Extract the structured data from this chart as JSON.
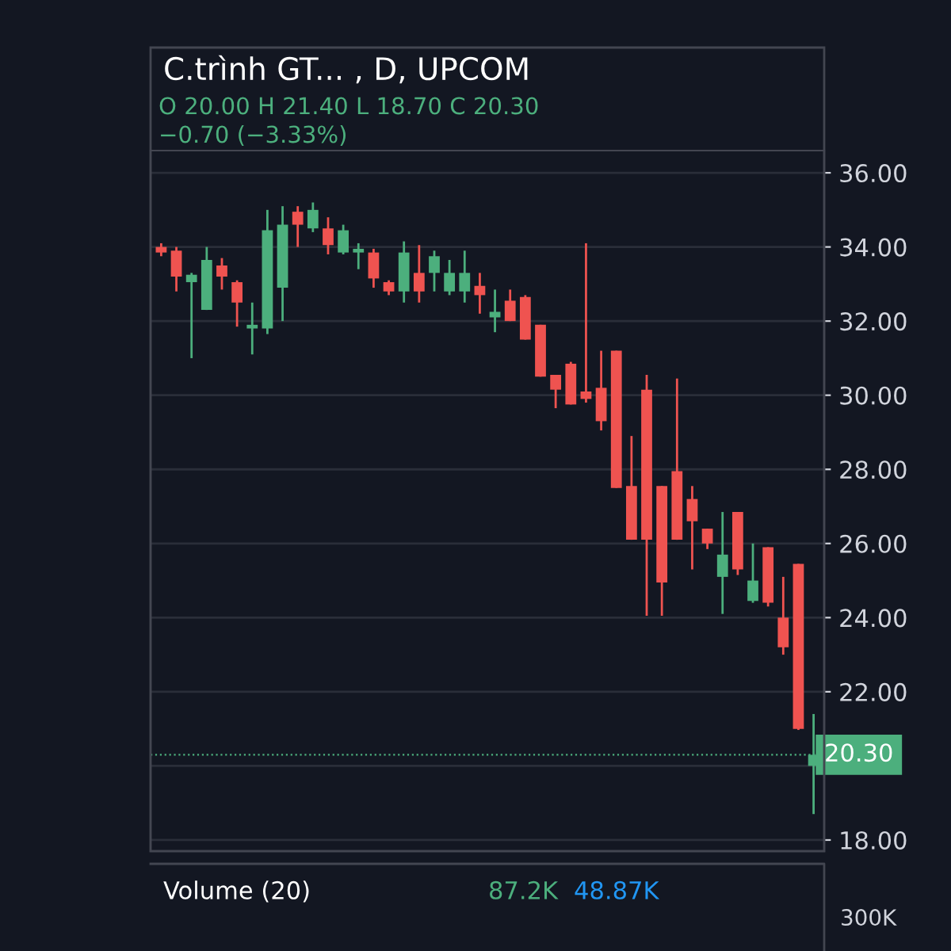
{
  "chart_data": {
    "type": "candlestick",
    "title": "C.trình GT... , D, UPCOM",
    "subtitle": "O 20.00 H 21.40 L 18.70 C 20.30",
    "annotations": [
      "−0.70 (−3.33%)",
      "Volume (20)",
      "87.2K",
      "48.87K",
      "300K"
    ],
    "categories": [
      null,
      null,
      null,
      null,
      null,
      null,
      null,
      null,
      null,
      null,
      null,
      null,
      null,
      null,
      null,
      null,
      null,
      null,
      null,
      null,
      null,
      null,
      null,
      null,
      null,
      null,
      null,
      null,
      null,
      null,
      null,
      null,
      null,
      null,
      null,
      null,
      null,
      null,
      null,
      null,
      null,
      null,
      null,
      null
    ],
    "ohlc": [
      [
        34.0,
        34.1,
        33.75,
        33.85
      ],
      [
        33.9,
        34.0,
        32.8,
        33.2
      ],
      [
        33.05,
        33.3,
        31.0,
        33.25
      ],
      [
        32.3,
        34.0,
        32.3,
        33.65
      ],
      [
        33.5,
        33.7,
        32.85,
        33.2
      ],
      [
        33.05,
        33.1,
        31.85,
        32.5
      ],
      [
        31.8,
        32.5,
        31.1,
        31.9
      ],
      [
        31.8,
        35.0,
        31.65,
        34.45
      ],
      [
        32.9,
        35.1,
        32.0,
        34.6
      ],
      [
        34.95,
        35.1,
        34.0,
        34.6
      ],
      [
        34.5,
        35.2,
        34.4,
        35.0
      ],
      [
        34.5,
        34.8,
        33.8,
        34.05
      ],
      [
        33.85,
        34.6,
        33.8,
        34.45
      ],
      [
        33.85,
        34.1,
        33.4,
        33.95
      ],
      [
        33.85,
        33.95,
        32.9,
        33.15
      ],
      [
        33.05,
        33.1,
        32.7,
        32.8
      ],
      [
        32.8,
        34.15,
        32.5,
        33.85
      ],
      [
        33.3,
        34.05,
        32.5,
        32.8
      ],
      [
        33.3,
        33.9,
        32.8,
        33.75
      ],
      [
        32.8,
        33.65,
        32.7,
        33.3
      ],
      [
        32.8,
        33.9,
        32.5,
        33.3
      ],
      [
        32.95,
        33.3,
        32.2,
        32.7
      ],
      [
        32.1,
        32.85,
        31.7,
        32.25
      ],
      [
        32.55,
        32.85,
        32.0,
        32.0
      ],
      [
        32.65,
        32.7,
        31.5,
        31.5
      ],
      [
        31.9,
        31.9,
        30.5,
        30.5
      ],
      [
        30.55,
        30.55,
        29.65,
        30.15
      ],
      [
        30.85,
        30.9,
        29.75,
        29.75
      ],
      [
        30.1,
        34.1,
        29.8,
        29.9
      ],
      [
        30.2,
        31.2,
        29.05,
        29.3
      ],
      [
        31.2,
        31.2,
        27.5,
        27.5
      ],
      [
        27.55,
        28.9,
        26.1,
        26.1
      ],
      [
        30.15,
        30.55,
        24.05,
        26.1
      ],
      [
        27.55,
        27.55,
        24.05,
        24.95
      ],
      [
        27.95,
        30.45,
        26.1,
        26.1
      ],
      [
        27.2,
        27.55,
        25.3,
        26.6
      ],
      [
        26.4,
        26.4,
        25.85,
        26.0
      ],
      [
        25.1,
        26.85,
        24.1,
        25.7
      ],
      [
        26.85,
        26.85,
        25.15,
        25.3
      ],
      [
        24.45,
        26.0,
        24.4,
        25.0
      ],
      [
        25.9,
        25.9,
        24.3,
        24.4
      ],
      [
        24.0,
        25.1,
        23.0,
        23.2
      ],
      [
        25.45,
        25.45,
        20.97,
        21.0
      ],
      [
        20.0,
        21.4,
        18.7,
        20.3
      ]
    ],
    "colors": [
      "#ef5350",
      "#ef5350",
      "#4caf7d",
      "#4caf7d",
      "#ef5350",
      "#ef5350",
      "#4caf7d",
      "#4caf7d",
      "#4caf7d",
      "#ef5350",
      "#4caf7d",
      "#ef5350",
      "#4caf7d",
      "#4caf7d",
      "#ef5350",
      "#ef5350",
      "#4caf7d",
      "#ef5350",
      "#4caf7d",
      "#4caf7d",
      "#4caf7d",
      "#ef5350",
      "#4caf7d",
      "#ef5350",
      "#ef5350",
      "#ef5350",
      "#ef5350",
      "#ef5350",
      "#ef5350",
      "#ef5350",
      "#ef5350",
      "#ef5350",
      "#ef5350",
      "#ef5350",
      "#ef5350",
      "#ef5350",
      "#ef5350",
      "#4caf7d",
      "#ef5350",
      "#4caf7d",
      "#ef5350",
      "#ef5350",
      "#ef5350",
      "#4caf7d"
    ],
    "ylim": [
      17.7,
      36.6
    ],
    "yticks": [
      {
        "value": 18,
        "label": "18.00"
      },
      {
        "value": 20,
        "label": null
      },
      {
        "value": 22,
        "label": "22.00"
      },
      {
        "value": 24,
        "label": "24.00"
      },
      {
        "value": 26,
        "label": "26.00"
      },
      {
        "value": 28,
        "label": "28.00"
      },
      {
        "value": 30,
        "label": "30.00"
      },
      {
        "value": 32,
        "label": "32.00"
      },
      {
        "value": 34,
        "label": "34.00"
      },
      {
        "value": 36,
        "label": "36.00"
      }
    ],
    "ref_lines": [
      {
        "axis": "y",
        "value": 20.3,
        "label": "20.30",
        "color": "#4caf7d"
      }
    ],
    "grid": "y"
  }
}
